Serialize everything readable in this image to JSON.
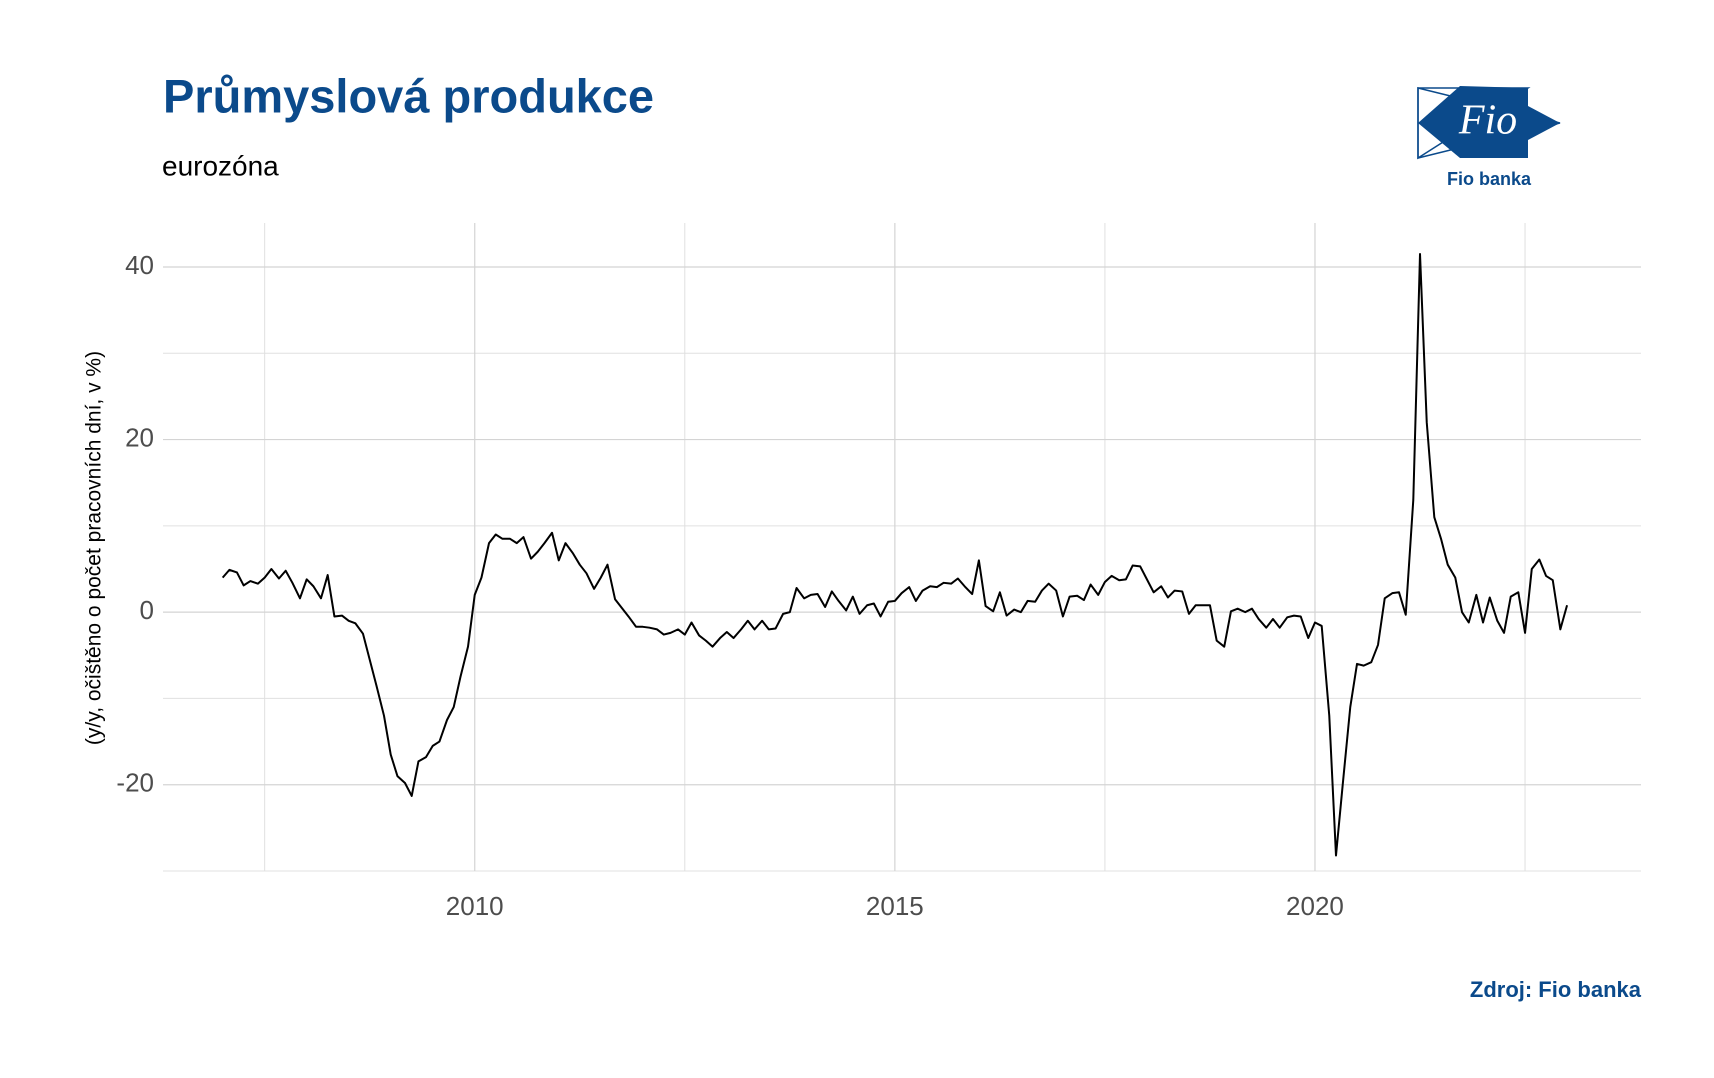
{
  "chart_data": {
    "type": "line",
    "title": "Průmyslová produkce",
    "subtitle": "eurozóna",
    "y_label": "(y/y, očištěno o počet pracovních dní, v %)",
    "source": "Zdroj: Fio banka",
    "logo": {
      "text": "Fio",
      "caption": "Fio banka"
    },
    "color": "#000000",
    "grid": true,
    "xlim": [
      2006.29,
      2023.88
    ],
    "xticks": [
      2010,
      2015,
      2020
    ],
    "x_minor_ticks": [
      2007.5,
      2012.5,
      2017.5,
      2022.5
    ],
    "ylim": [
      -30,
      45.1
    ],
    "yticks": [
      -20,
      0,
      20,
      40
    ],
    "y_minor_ticks": [
      -30,
      -10,
      10,
      30
    ],
    "x": [
      2007,
      2007.08,
      2007.17,
      2007.25,
      2007.33,
      2007.42,
      2007.5,
      2007.58,
      2007.67,
      2007.75,
      2007.83,
      2007.92,
      2008,
      2008.08,
      2008.17,
      2008.25,
      2008.33,
      2008.42,
      2008.5,
      2008.58,
      2008.67,
      2008.75,
      2008.83,
      2008.92,
      2009,
      2009.08,
      2009.17,
      2009.25,
      2009.33,
      2009.42,
      2009.5,
      2009.58,
      2009.67,
      2009.75,
      2009.83,
      2009.92,
      2010,
      2010.08,
      2010.17,
      2010.25,
      2010.33,
      2010.42,
      2010.5,
      2010.58,
      2010.67,
      2010.75,
      2010.83,
      2010.92,
      2011,
      2011.08,
      2011.17,
      2011.25,
      2011.33,
      2011.42,
      2011.5,
      2011.58,
      2011.67,
      2011.75,
      2011.83,
      2011.92,
      2012,
      2012.08,
      2012.17,
      2012.25,
      2012.33,
      2012.42,
      2012.5,
      2012.58,
      2012.67,
      2012.75,
      2012.83,
      2012.92,
      2013,
      2013.08,
      2013.17,
      2013.25,
      2013.33,
      2013.42,
      2013.5,
      2013.58,
      2013.67,
      2013.75,
      2013.83,
      2013.92,
      2014,
      2014.08,
      2014.17,
      2014.25,
      2014.33,
      2014.42,
      2014.5,
      2014.58,
      2014.67,
      2014.75,
      2014.83,
      2014.92,
      2015,
      2015.08,
      2015.17,
      2015.25,
      2015.33,
      2015.42,
      2015.5,
      2015.58,
      2015.67,
      2015.75,
      2015.83,
      2015.92,
      2016,
      2016.08,
      2016.17,
      2016.25,
      2016.33,
      2016.42,
      2016.5,
      2016.58,
      2016.67,
      2016.75,
      2016.83,
      2016.92,
      2017,
      2017.08,
      2017.17,
      2017.25,
      2017.33,
      2017.42,
      2017.5,
      2017.58,
      2017.67,
      2017.75,
      2017.83,
      2017.92,
      2018,
      2018.08,
      2018.17,
      2018.25,
      2018.33,
      2018.42,
      2018.5,
      2018.58,
      2018.67,
      2018.75,
      2018.83,
      2018.92,
      2019,
      2019.08,
      2019.17,
      2019.25,
      2019.33,
      2019.42,
      2019.5,
      2019.58,
      2019.67,
      2019.75,
      2019.83,
      2019.92,
      2020,
      2020.08,
      2020.17,
      2020.25,
      2020.33,
      2020.42,
      2020.5,
      2020.58,
      2020.67,
      2020.75,
      2020.83,
      2020.92,
      2021,
      2021.08,
      2021.17,
      2021.25,
      2021.33,
      2021.42,
      2021.5,
      2021.58,
      2021.67,
      2021.75,
      2021.83,
      2021.92,
      2022,
      2022.08,
      2022.17,
      2022.25,
      2022.33,
      2022.42,
      2022.5,
      2022.58,
      2022.67,
      2022.75,
      2022.83,
      2022.92,
      2023
    ],
    "values": [
      4.0,
      4.9,
      4.6,
      3.1,
      3.6,
      3.3,
      4.0,
      5.0,
      3.9,
      4.8,
      3.4,
      1.6,
      3.8,
      3.0,
      1.6,
      4.3,
      -0.5,
      -0.4,
      -1.0,
      -1.3,
      -2.5,
      -5.5,
      -8.5,
      -12.0,
      -16.5,
      -19.0,
      -19.8,
      -21.3,
      -17.3,
      -16.8,
      -15.5,
      -15.0,
      -12.5,
      -11.0,
      -7.5,
      -4.0,
      2.0,
      4.0,
      8.0,
      9.0,
      8.5,
      8.5,
      8.0,
      8.7,
      6.2,
      7.0,
      8.0,
      9.2,
      6.0,
      8.0,
      6.8,
      5.5,
      4.5,
      2.7,
      4.0,
      5.5,
      1.5,
      0.5,
      -0.5,
      -1.7,
      -1.7,
      -1.8,
      -2.0,
      -2.6,
      -2.4,
      -2.0,
      -2.6,
      -1.2,
      -2.7,
      -3.3,
      -4.0,
      -3.0,
      -2.3,
      -3.0,
      -2.0,
      -1.0,
      -2.0,
      -1.0,
      -2.0,
      -1.9,
      -0.2,
      0.0,
      2.8,
      1.6,
      2.0,
      2.1,
      0.6,
      2.4,
      1.3,
      0.2,
      1.8,
      -0.2,
      0.8,
      1.0,
      -0.5,
      1.2,
      1.3,
      2.2,
      2.9,
      1.3,
      2.5,
      3.0,
      2.9,
      3.4,
      3.3,
      3.9,
      3.0,
      2.1,
      6.0,
      0.7,
      0.1,
      2.3,
      -0.4,
      0.3,
      0.0,
      1.3,
      1.2,
      2.5,
      3.3,
      2.5,
      -0.5,
      1.8,
      1.9,
      1.4,
      3.2,
      2.0,
      3.5,
      4.2,
      3.7,
      3.8,
      5.4,
      5.3,
      3.8,
      2.3,
      3.0,
      1.7,
      2.5,
      2.4,
      -0.2,
      0.8,
      0.8,
      0.8,
      -3.3,
      -4.0,
      0.1,
      0.4,
      0.0,
      0.4,
      -0.8,
      -1.8,
      -0.8,
      -1.8,
      -0.6,
      -0.4,
      -0.5,
      -3.0,
      -1.2,
      -1.6,
      -12.0,
      -28.2,
      -20.0,
      -11.0,
      -6.0,
      -6.2,
      -5.8,
      -3.8,
      1.6,
      2.2,
      2.3,
      -0.3,
      13.0,
      41.5,
      22.0,
      11.0,
      8.5,
      5.5,
      4.0,
      0.0,
      -1.2,
      2.0,
      -1.2,
      1.7,
      -1.0,
      -2.4,
      1.8,
      2.3,
      -2.4,
      5.0,
      6.1,
      4.2,
      3.7,
      -2.0,
      0.8
    ]
  }
}
